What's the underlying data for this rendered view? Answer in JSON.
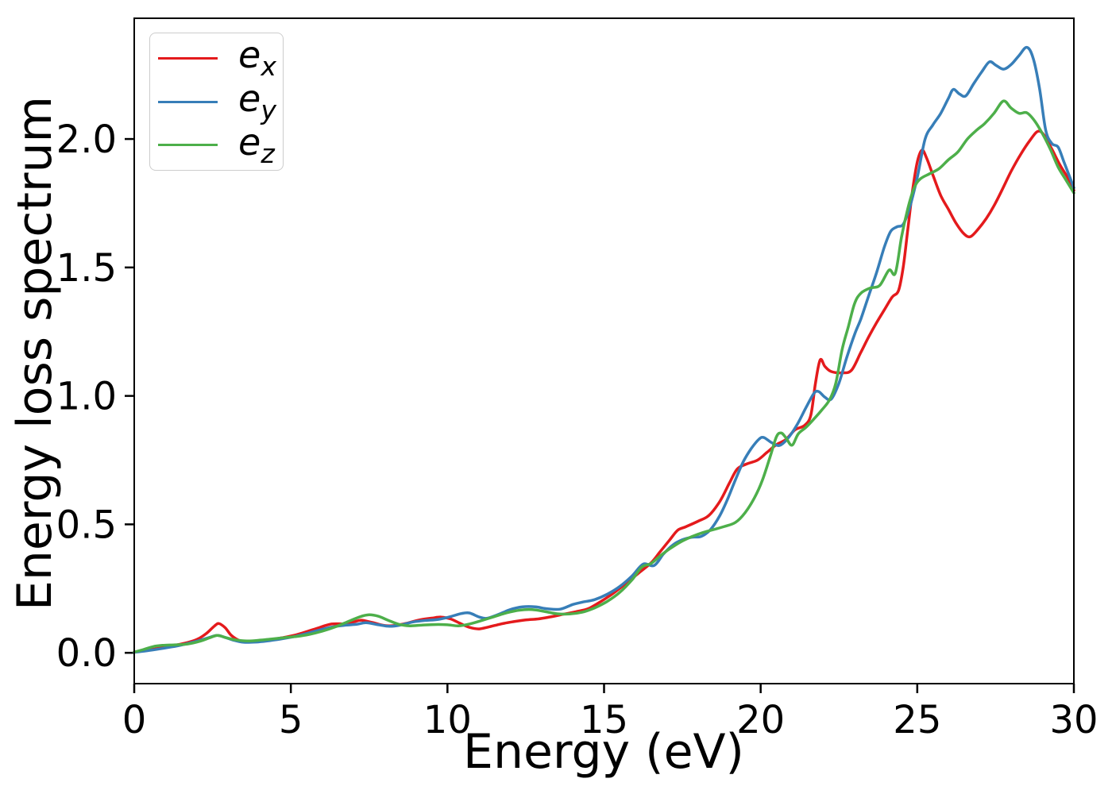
{
  "chart_data": {
    "type": "line",
    "title": "",
    "xlabel": "Energy (eV)",
    "ylabel": "Energy loss spectrum",
    "xlim": [
      0,
      30
    ],
    "ylim": [
      -0.12,
      2.47
    ],
    "x_ticks": [
      0,
      5,
      10,
      15,
      20,
      25,
      30
    ],
    "x_tick_labels": [
      "0",
      "5",
      "10",
      "15",
      "20",
      "25",
      "30"
    ],
    "y_ticks": [
      0.0,
      0.5,
      1.0,
      1.5,
      2.0
    ],
    "y_tick_labels": [
      "0.0",
      "0.5",
      "1.0",
      "1.5",
      "2.0"
    ],
    "grid": false,
    "legend_position": "upper left",
    "series": [
      {
        "name": "e_x",
        "color": "#e41a1c",
        "points": [
          [
            0,
            0.003
          ],
          [
            0.4,
            0.01
          ],
          [
            0.8,
            0.018
          ],
          [
            1.2,
            0.027
          ],
          [
            1.6,
            0.037
          ],
          [
            2.0,
            0.052
          ],
          [
            2.3,
            0.075
          ],
          [
            2.55,
            0.103
          ],
          [
            2.7,
            0.114
          ],
          [
            2.9,
            0.098
          ],
          [
            3.1,
            0.068
          ],
          [
            3.35,
            0.048
          ],
          [
            3.6,
            0.042
          ],
          [
            3.9,
            0.044
          ],
          [
            4.3,
            0.05
          ],
          [
            4.7,
            0.058
          ],
          [
            5.1,
            0.068
          ],
          [
            5.5,
            0.082
          ],
          [
            5.9,
            0.098
          ],
          [
            6.3,
            0.112
          ],
          [
            6.7,
            0.113
          ],
          [
            7.0,
            0.12
          ],
          [
            7.25,
            0.127
          ],
          [
            7.6,
            0.118
          ],
          [
            8.0,
            0.106
          ],
          [
            8.3,
            0.106
          ],
          [
            8.7,
            0.115
          ],
          [
            9.1,
            0.128
          ],
          [
            9.5,
            0.135
          ],
          [
            9.8,
            0.139
          ],
          [
            10.1,
            0.132
          ],
          [
            10.4,
            0.115
          ],
          [
            10.7,
            0.099
          ],
          [
            11.0,
            0.093
          ],
          [
            11.3,
            0.1
          ],
          [
            11.7,
            0.112
          ],
          [
            12.1,
            0.121
          ],
          [
            12.5,
            0.128
          ],
          [
            12.9,
            0.132
          ],
          [
            13.3,
            0.14
          ],
          [
            13.7,
            0.15
          ],
          [
            14.1,
            0.16
          ],
          [
            14.5,
            0.172
          ],
          [
            14.9,
            0.2
          ],
          [
            15.3,
            0.232
          ],
          [
            15.7,
            0.27
          ],
          [
            16.1,
            0.31
          ],
          [
            16.5,
            0.35
          ],
          [
            16.8,
            0.395
          ],
          [
            17.1,
            0.44
          ],
          [
            17.35,
            0.477
          ],
          [
            17.6,
            0.49
          ],
          [
            18.0,
            0.512
          ],
          [
            18.35,
            0.535
          ],
          [
            18.7,
            0.59
          ],
          [
            19.0,
            0.66
          ],
          [
            19.25,
            0.715
          ],
          [
            19.55,
            0.735
          ],
          [
            19.9,
            0.75
          ],
          [
            20.2,
            0.78
          ],
          [
            20.5,
            0.81
          ],
          [
            20.8,
            0.83
          ],
          [
            21.1,
            0.868
          ],
          [
            21.4,
            0.885
          ],
          [
            21.6,
            0.925
          ],
          [
            21.75,
            1.05
          ],
          [
            21.9,
            1.14
          ],
          [
            22.05,
            1.115
          ],
          [
            22.25,
            1.095
          ],
          [
            22.6,
            1.09
          ],
          [
            22.9,
            1.1
          ],
          [
            23.2,
            1.17
          ],
          [
            23.45,
            1.23
          ],
          [
            23.7,
            1.285
          ],
          [
            23.95,
            1.335
          ],
          [
            24.2,
            1.385
          ],
          [
            24.4,
            1.41
          ],
          [
            24.55,
            1.5
          ],
          [
            24.7,
            1.65
          ],
          [
            24.85,
            1.8
          ],
          [
            25.0,
            1.91
          ],
          [
            25.15,
            1.957
          ],
          [
            25.3,
            1.925
          ],
          [
            25.5,
            1.86
          ],
          [
            25.75,
            1.78
          ],
          [
            26.0,
            1.725
          ],
          [
            26.25,
            1.67
          ],
          [
            26.5,
            1.63
          ],
          [
            26.7,
            1.62
          ],
          [
            26.95,
            1.65
          ],
          [
            27.2,
            1.69
          ],
          [
            27.45,
            1.74
          ],
          [
            27.7,
            1.8
          ],
          [
            28.0,
            1.875
          ],
          [
            28.3,
            1.94
          ],
          [
            28.6,
            1.995
          ],
          [
            28.85,
            2.03
          ],
          [
            29.05,
            2.015
          ],
          [
            29.3,
            1.96
          ],
          [
            29.55,
            1.9
          ],
          [
            29.8,
            1.85
          ],
          [
            30,
            1.8
          ]
        ]
      },
      {
        "name": "e_y",
        "color": "#377eb8",
        "points": [
          [
            0,
            0.002
          ],
          [
            0.4,
            0.008
          ],
          [
            0.8,
            0.015
          ],
          [
            1.2,
            0.023
          ],
          [
            1.6,
            0.033
          ],
          [
            2.0,
            0.045
          ],
          [
            2.35,
            0.058
          ],
          [
            2.65,
            0.068
          ],
          [
            2.9,
            0.06
          ],
          [
            3.2,
            0.048
          ],
          [
            3.5,
            0.041
          ],
          [
            3.9,
            0.042
          ],
          [
            4.3,
            0.047
          ],
          [
            4.7,
            0.054
          ],
          [
            5.1,
            0.063
          ],
          [
            5.5,
            0.075
          ],
          [
            5.9,
            0.088
          ],
          [
            6.3,
            0.1
          ],
          [
            6.7,
            0.107
          ],
          [
            7.1,
            0.111
          ],
          [
            7.4,
            0.117
          ],
          [
            7.8,
            0.109
          ],
          [
            8.15,
            0.103
          ],
          [
            8.5,
            0.108
          ],
          [
            8.9,
            0.12
          ],
          [
            9.3,
            0.126
          ],
          [
            9.7,
            0.13
          ],
          [
            10.1,
            0.141
          ],
          [
            10.45,
            0.153
          ],
          [
            10.7,
            0.155
          ],
          [
            11.0,
            0.14
          ],
          [
            11.25,
            0.134
          ],
          [
            11.6,
            0.148
          ],
          [
            12.0,
            0.168
          ],
          [
            12.4,
            0.179
          ],
          [
            12.8,
            0.179
          ],
          [
            13.2,
            0.171
          ],
          [
            13.6,
            0.17
          ],
          [
            14.0,
            0.188
          ],
          [
            14.3,
            0.197
          ],
          [
            14.7,
            0.207
          ],
          [
            15.1,
            0.228
          ],
          [
            15.5,
            0.258
          ],
          [
            15.9,
            0.3
          ],
          [
            16.25,
            0.345
          ],
          [
            16.6,
            0.34
          ],
          [
            16.9,
            0.385
          ],
          [
            17.2,
            0.42
          ],
          [
            17.5,
            0.44
          ],
          [
            17.8,
            0.45
          ],
          [
            18.1,
            0.453
          ],
          [
            18.4,
            0.48
          ],
          [
            18.7,
            0.535
          ],
          [
            18.95,
            0.6
          ],
          [
            19.2,
            0.675
          ],
          [
            19.45,
            0.745
          ],
          [
            19.7,
            0.795
          ],
          [
            19.95,
            0.832
          ],
          [
            20.1,
            0.838
          ],
          [
            20.35,
            0.818
          ],
          [
            20.6,
            0.807
          ],
          [
            20.85,
            0.832
          ],
          [
            21.15,
            0.885
          ],
          [
            21.45,
            0.955
          ],
          [
            21.7,
            1.01
          ],
          [
            21.85,
            1.017
          ],
          [
            22.05,
            0.995
          ],
          [
            22.25,
            0.987
          ],
          [
            22.5,
            1.05
          ],
          [
            22.75,
            1.15
          ],
          [
            23.0,
            1.24
          ],
          [
            23.2,
            1.3
          ],
          [
            23.45,
            1.39
          ],
          [
            23.7,
            1.48
          ],
          [
            23.95,
            1.58
          ],
          [
            24.15,
            1.64
          ],
          [
            24.35,
            1.658
          ],
          [
            24.55,
            1.668
          ],
          [
            24.75,
            1.73
          ],
          [
            25.0,
            1.85
          ],
          [
            25.25,
            2.0
          ],
          [
            25.5,
            2.055
          ],
          [
            25.75,
            2.1
          ],
          [
            26.0,
            2.16
          ],
          [
            26.15,
            2.193
          ],
          [
            26.35,
            2.175
          ],
          [
            26.55,
            2.168
          ],
          [
            26.8,
            2.215
          ],
          [
            27.05,
            2.26
          ],
          [
            27.3,
            2.3
          ],
          [
            27.5,
            2.288
          ],
          [
            27.75,
            2.272
          ],
          [
            28.0,
            2.29
          ],
          [
            28.25,
            2.325
          ],
          [
            28.5,
            2.357
          ],
          [
            28.7,
            2.315
          ],
          [
            28.9,
            2.2
          ],
          [
            29.1,
            2.035
          ],
          [
            29.3,
            1.982
          ],
          [
            29.5,
            1.968
          ],
          [
            29.7,
            1.905
          ],
          [
            30,
            1.81
          ]
        ]
      },
      {
        "name": "e_z",
        "color": "#4daf4a",
        "points": [
          [
            0,
            0.003
          ],
          [
            0.3,
            0.013
          ],
          [
            0.6,
            0.024
          ],
          [
            0.9,
            0.029
          ],
          [
            1.3,
            0.031
          ],
          [
            1.7,
            0.034
          ],
          [
            2.1,
            0.045
          ],
          [
            2.4,
            0.058
          ],
          [
            2.65,
            0.068
          ],
          [
            2.9,
            0.06
          ],
          [
            3.2,
            0.051
          ],
          [
            3.6,
            0.046
          ],
          [
            4.0,
            0.049
          ],
          [
            4.4,
            0.054
          ],
          [
            4.8,
            0.059
          ],
          [
            5.2,
            0.064
          ],
          [
            5.6,
            0.072
          ],
          [
            6.0,
            0.084
          ],
          [
            6.4,
            0.1
          ],
          [
            6.8,
            0.12
          ],
          [
            7.2,
            0.14
          ],
          [
            7.5,
            0.148
          ],
          [
            7.8,
            0.142
          ],
          [
            8.1,
            0.127
          ],
          [
            8.45,
            0.111
          ],
          [
            8.8,
            0.105
          ],
          [
            9.2,
            0.108
          ],
          [
            9.6,
            0.11
          ],
          [
            10.0,
            0.109
          ],
          [
            10.35,
            0.105
          ],
          [
            10.7,
            0.112
          ],
          [
            11.1,
            0.126
          ],
          [
            11.5,
            0.141
          ],
          [
            11.9,
            0.156
          ],
          [
            12.3,
            0.166
          ],
          [
            12.7,
            0.168
          ],
          [
            13.1,
            0.161
          ],
          [
            13.5,
            0.152
          ],
          [
            13.9,
            0.151
          ],
          [
            14.3,
            0.158
          ],
          [
            14.7,
            0.175
          ],
          [
            15.1,
            0.2
          ],
          [
            15.5,
            0.235
          ],
          [
            15.9,
            0.285
          ],
          [
            16.2,
            0.333
          ],
          [
            16.5,
            0.348
          ],
          [
            16.8,
            0.378
          ],
          [
            17.1,
            0.405
          ],
          [
            17.45,
            0.432
          ],
          [
            17.8,
            0.452
          ],
          [
            18.15,
            0.468
          ],
          [
            18.5,
            0.48
          ],
          [
            18.85,
            0.492
          ],
          [
            19.2,
            0.508
          ],
          [
            19.5,
            0.545
          ],
          [
            19.8,
            0.603
          ],
          [
            20.05,
            0.67
          ],
          [
            20.3,
            0.762
          ],
          [
            20.5,
            0.84
          ],
          [
            20.65,
            0.856
          ],
          [
            20.8,
            0.838
          ],
          [
            21.0,
            0.808
          ],
          [
            21.2,
            0.852
          ],
          [
            21.45,
            0.878
          ],
          [
            21.7,
            0.91
          ],
          [
            21.95,
            0.945
          ],
          [
            22.2,
            0.985
          ],
          [
            22.4,
            1.05
          ],
          [
            22.6,
            1.18
          ],
          [
            22.8,
            1.27
          ],
          [
            23.0,
            1.36
          ],
          [
            23.2,
            1.4
          ],
          [
            23.5,
            1.42
          ],
          [
            23.8,
            1.43
          ],
          [
            24.1,
            1.49
          ],
          [
            24.3,
            1.478
          ],
          [
            24.5,
            1.62
          ],
          [
            24.7,
            1.73
          ],
          [
            24.9,
            1.81
          ],
          [
            25.1,
            1.845
          ],
          [
            25.4,
            1.865
          ],
          [
            25.7,
            1.885
          ],
          [
            26.0,
            1.92
          ],
          [
            26.3,
            1.95
          ],
          [
            26.6,
            2.0
          ],
          [
            26.9,
            2.035
          ],
          [
            27.15,
            2.06
          ],
          [
            27.45,
            2.1
          ],
          [
            27.75,
            2.148
          ],
          [
            28.0,
            2.12
          ],
          [
            28.25,
            2.1
          ],
          [
            28.5,
            2.102
          ],
          [
            28.75,
            2.07
          ],
          [
            29.0,
            2.02
          ],
          [
            29.25,
            1.96
          ],
          [
            29.5,
            1.89
          ],
          [
            29.75,
            1.84
          ],
          [
            30,
            1.79
          ]
        ]
      }
    ]
  }
}
